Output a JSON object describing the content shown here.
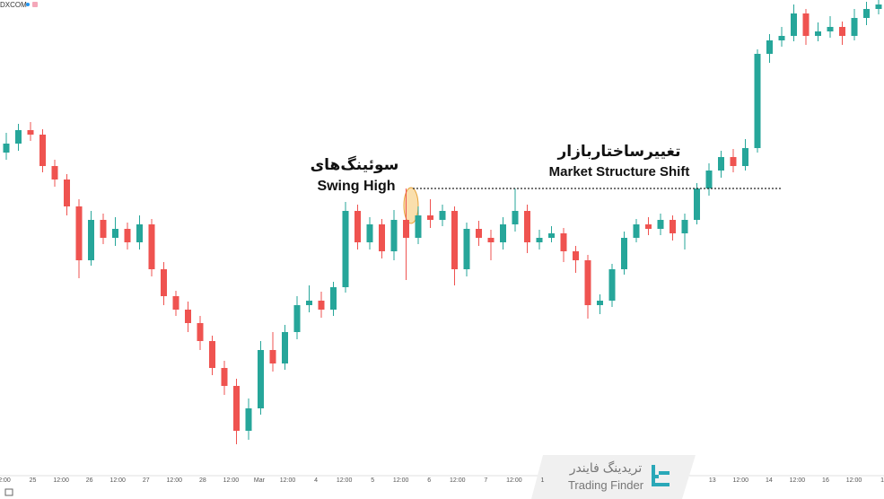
{
  "chart_data": {
    "type": "candlestick",
    "symbol": "DXCOM",
    "annotations": [
      {
        "fa": "سوئینگ‌های",
        "en": "Swing High"
      },
      {
        "fa": "تغییرساختاربازار",
        "en": "Market Structure Shift"
      }
    ],
    "brand": {
      "fa": "تریدینگ فایندر",
      "en": "Trading Finder"
    },
    "up_color": "#26a69a",
    "down_color": "#ef5350",
    "ylim": [
      0,
      540
    ],
    "swing_level": 330,
    "x_labels": [
      "2:00",
      "25",
      "12:00",
      "26",
      "12:00",
      "27",
      "12:00",
      "28",
      "12:00",
      "Mar",
      "12:00",
      "4",
      "12:00",
      "5",
      "12:00",
      "6",
      "12:00",
      "7",
      "12:00",
      "1",
      null,
      null,
      null,
      null,
      null,
      "13",
      "12:00",
      "14",
      "12:00",
      "16",
      "12:00",
      "1"
    ],
    "open": [
      370,
      380,
      395,
      390,
      355,
      340,
      310,
      250,
      295,
      275,
      285,
      270,
      290,
      240,
      210,
      195,
      180,
      160,
      130,
      110,
      60,
      85,
      150,
      135,
      170,
      200,
      205,
      195,
      220,
      305,
      270,
      290,
      260,
      295,
      275,
      300,
      295,
      305,
      240,
      285,
      275,
      270,
      290,
      305,
      270,
      275,
      280,
      260,
      250,
      200,
      205,
      240,
      275,
      290,
      285,
      295,
      280,
      295,
      330,
      350,
      365,
      355,
      375,
      480,
      495,
      500,
      525,
      500,
      505,
      510,
      500,
      520,
      530
    ],
    "high": [
      392,
      402,
      404,
      396,
      362,
      346,
      318,
      305,
      302,
      298,
      292,
      300,
      296,
      248,
      216,
      204,
      188,
      166,
      138,
      118,
      96,
      160,
      170,
      178,
      210,
      222,
      215,
      226,
      315,
      312,
      298,
      296,
      306,
      330,
      310,
      318,
      312,
      310,
      292,
      294,
      284,
      298,
      330,
      312,
      284,
      288,
      286,
      266,
      256,
      212,
      246,
      282,
      296,
      298,
      302,
      300,
      302,
      336,
      358,
      372,
      374,
      385,
      485,
      502,
      510,
      535,
      530,
      515,
      522,
      516,
      530,
      538,
      540
    ],
    "low": [
      362,
      372,
      383,
      348,
      332,
      300,
      230,
      244,
      268,
      266,
      262,
      262,
      232,
      200,
      188,
      170,
      150,
      122,
      100,
      45,
      50,
      78,
      126,
      128,
      162,
      192,
      186,
      188,
      214,
      262,
      262,
      252,
      250,
      228,
      268,
      286,
      288,
      222,
      232,
      266,
      250,
      262,
      282,
      258,
      262,
      270,
      248,
      236,
      185,
      190,
      198,
      234,
      270,
      278,
      278,
      272,
      262,
      290,
      322,
      342,
      348,
      350,
      370,
      470,
      488,
      494,
      490,
      494,
      498,
      490,
      495,
      512,
      524
    ],
    "close": [
      380,
      395,
      390,
      355,
      340,
      310,
      250,
      295,
      275,
      285,
      270,
      290,
      240,
      210,
      195,
      180,
      160,
      130,
      110,
      60,
      85,
      150,
      135,
      170,
      200,
      205,
      195,
      220,
      305,
      270,
      290,
      260,
      295,
      275,
      300,
      295,
      305,
      240,
      285,
      275,
      270,
      290,
      305,
      270,
      275,
      280,
      260,
      250,
      200,
      205,
      240,
      275,
      290,
      285,
      295,
      280,
      295,
      330,
      350,
      365,
      355,
      375,
      480,
      495,
      500,
      525,
      500,
      505,
      510,
      500,
      520,
      530,
      535
    ]
  }
}
